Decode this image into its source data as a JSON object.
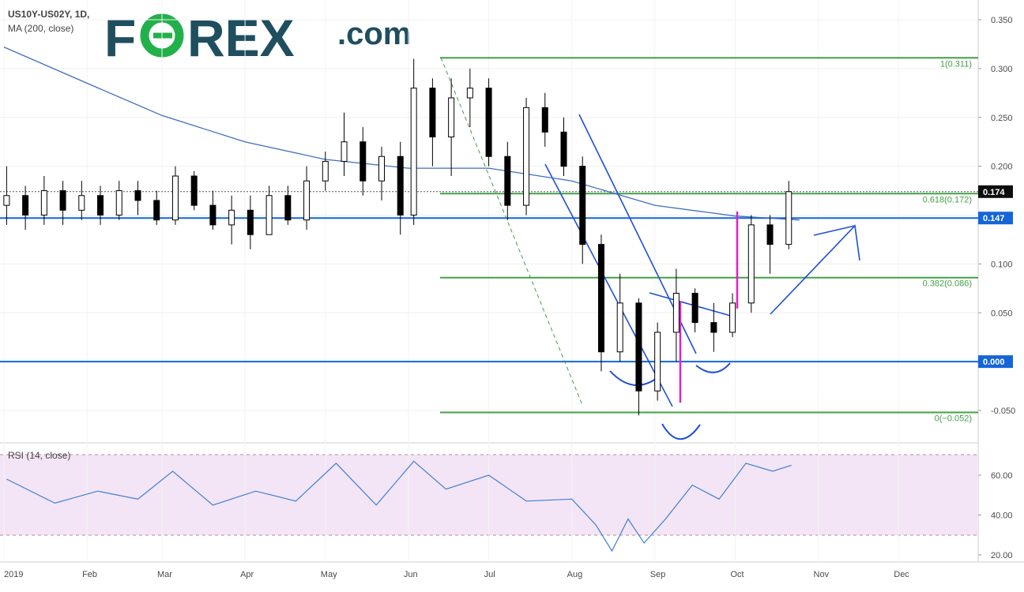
{
  "header": {
    "symbol_line": "US10Y-US02Y, 1D,",
    "ma_line": "MA (200, close)"
  },
  "logo": {
    "brand_left": "F",
    "brand_o": "O",
    "brand_right": "REX",
    "domain": ".com"
  },
  "rsi_panel": {
    "label": "RSI (14, close)"
  },
  "colors": {
    "candle_up_fill": "#ffffff",
    "candle_down_fill": "#000000",
    "ma": "#3f6fbf",
    "horizontal_level": "#1565d8",
    "fib_level": "#43a047",
    "annotation_blue": "#1e4fd8",
    "annotation_magenta": "#e020c8",
    "rsi_line": "#3f7fd6",
    "rsi_band": "#f3e5f5",
    "price_tag_dark": "#0d0d0d",
    "price_tag_blue": "#1565d8",
    "logo_text": "#1f4e5f",
    "logo_accent": "#22b04a"
  },
  "chart_data": [
    {
      "type": "candlestick",
      "title": "US10Y-US02Y, 1D,",
      "indicator": "MA (200, close)",
      "x_tick_labels": [
        "2019",
        "Feb",
        "Mar",
        "Apr",
        "May",
        "Jun",
        "Jul",
        "Aug",
        "Sep",
        "Oct",
        "Nov",
        "Dec"
      ],
      "y_tick_labels": [
        "0.350",
        "0.300",
        "0.250",
        "0.200",
        "0.150",
        "0.100",
        "0.050",
        "0.000",
        "-0.050"
      ],
      "ylim": [
        -0.09,
        0.36
      ],
      "last_price": "0.174",
      "horizontal_levels": [
        {
          "value": 0.147,
          "label": "0.147"
        },
        {
          "value": 0.0,
          "label": "0.000"
        }
      ],
      "fibonacci": [
        {
          "value": 0.311,
          "label": "1(0.311)"
        },
        {
          "value": 0.172,
          "label": "0.618(0.172)"
        },
        {
          "value": 0.086,
          "label": "0.382(0.086)"
        },
        {
          "value": -0.052,
          "label": "0(−0.052)"
        }
      ],
      "candles": [
        {
          "d": "2019-01-02",
          "o": 0.16,
          "h": 0.2,
          "l": 0.14,
          "c": 0.17
        },
        {
          "d": "2019-01-09",
          "o": 0.17,
          "h": 0.18,
          "l": 0.135,
          "c": 0.15
        },
        {
          "d": "2019-01-16",
          "o": 0.15,
          "h": 0.19,
          "l": 0.14,
          "c": 0.175
        },
        {
          "d": "2019-01-23",
          "o": 0.175,
          "h": 0.185,
          "l": 0.14,
          "c": 0.155
        },
        {
          "d": "2019-01-30",
          "o": 0.155,
          "h": 0.185,
          "l": 0.145,
          "c": 0.17
        },
        {
          "d": "2019-02-06",
          "o": 0.17,
          "h": 0.18,
          "l": 0.14,
          "c": 0.15
        },
        {
          "d": "2019-02-13",
          "o": 0.15,
          "h": 0.185,
          "l": 0.145,
          "c": 0.175
        },
        {
          "d": "2019-02-20",
          "o": 0.175,
          "h": 0.185,
          "l": 0.15,
          "c": 0.165
        },
        {
          "d": "2019-02-27",
          "o": 0.165,
          "h": 0.175,
          "l": 0.14,
          "c": 0.145
        },
        {
          "d": "2019-03-06",
          "o": 0.145,
          "h": 0.2,
          "l": 0.14,
          "c": 0.19
        },
        {
          "d": "2019-03-13",
          "o": 0.19,
          "h": 0.195,
          "l": 0.155,
          "c": 0.16
        },
        {
          "d": "2019-03-20",
          "o": 0.16,
          "h": 0.175,
          "l": 0.135,
          "c": 0.14
        },
        {
          "d": "2019-03-27",
          "o": 0.14,
          "h": 0.17,
          "l": 0.12,
          "c": 0.155
        },
        {
          "d": "2019-04-03",
          "o": 0.155,
          "h": 0.17,
          "l": 0.115,
          "c": 0.13
        },
        {
          "d": "2019-04-10",
          "o": 0.13,
          "h": 0.18,
          "l": 0.13,
          "c": 0.17
        },
        {
          "d": "2019-04-17",
          "o": 0.17,
          "h": 0.18,
          "l": 0.14,
          "c": 0.145
        },
        {
          "d": "2019-04-24",
          "o": 0.145,
          "h": 0.2,
          "l": 0.135,
          "c": 0.185
        },
        {
          "d": "2019-05-01",
          "o": 0.185,
          "h": 0.215,
          "l": 0.175,
          "c": 0.205
        },
        {
          "d": "2019-05-08",
          "o": 0.205,
          "h": 0.255,
          "l": 0.19,
          "c": 0.225
        },
        {
          "d": "2019-05-15",
          "o": 0.225,
          "h": 0.24,
          "l": 0.17,
          "c": 0.185
        },
        {
          "d": "2019-05-22",
          "o": 0.185,
          "h": 0.22,
          "l": 0.165,
          "c": 0.21
        },
        {
          "d": "2019-05-29",
          "o": 0.21,
          "h": 0.225,
          "l": 0.13,
          "c": 0.15
        },
        {
          "d": "2019-06-03",
          "o": 0.15,
          "h": 0.31,
          "l": 0.14,
          "c": 0.28
        },
        {
          "d": "2019-06-10",
          "o": 0.28,
          "h": 0.29,
          "l": 0.2,
          "c": 0.23
        },
        {
          "d": "2019-06-17",
          "o": 0.23,
          "h": 0.29,
          "l": 0.19,
          "c": 0.27
        },
        {
          "d": "2019-06-24",
          "o": 0.27,
          "h": 0.3,
          "l": 0.24,
          "c": 0.28
        },
        {
          "d": "2019-07-01",
          "o": 0.28,
          "h": 0.29,
          "l": 0.2,
          "c": 0.21
        },
        {
          "d": "2019-07-08",
          "o": 0.21,
          "h": 0.225,
          "l": 0.145,
          "c": 0.16
        },
        {
          "d": "2019-07-15",
          "o": 0.16,
          "h": 0.27,
          "l": 0.15,
          "c": 0.26
        },
        {
          "d": "2019-07-22",
          "o": 0.26,
          "h": 0.275,
          "l": 0.22,
          "c": 0.235
        },
        {
          "d": "2019-07-29",
          "o": 0.235,
          "h": 0.25,
          "l": 0.19,
          "c": 0.2
        },
        {
          "d": "2019-08-05",
          "o": 0.2,
          "h": 0.21,
          "l": 0.1,
          "c": 0.12
        },
        {
          "d": "2019-08-12",
          "o": 0.12,
          "h": 0.13,
          "l": -0.01,
          "c": 0.01
        },
        {
          "d": "2019-08-19",
          "o": 0.01,
          "h": 0.09,
          "l": 0.0,
          "c": 0.06
        },
        {
          "d": "2019-08-26",
          "o": 0.06,
          "h": 0.065,
          "l": -0.055,
          "c": -0.03
        },
        {
          "d": "2019-09-02",
          "o": -0.03,
          "h": 0.04,
          "l": -0.04,
          "c": 0.03
        },
        {
          "d": "2019-09-09",
          "o": 0.03,
          "h": 0.095,
          "l": 0.0,
          "c": 0.07
        },
        {
          "d": "2019-09-16",
          "o": 0.07,
          "h": 0.075,
          "l": 0.03,
          "c": 0.04
        },
        {
          "d": "2019-09-23",
          "o": 0.04,
          "h": 0.06,
          "l": 0.01,
          "c": 0.03
        },
        {
          "d": "2019-09-30",
          "o": 0.03,
          "h": 0.07,
          "l": 0.025,
          "c": 0.06
        },
        {
          "d": "2019-10-07",
          "o": 0.06,
          "h": 0.15,
          "l": 0.05,
          "c": 0.14
        },
        {
          "d": "2019-10-14",
          "o": 0.14,
          "h": 0.15,
          "l": 0.09,
          "c": 0.12
        },
        {
          "d": "2019-10-21",
          "o": 0.12,
          "h": 0.185,
          "l": 0.115,
          "c": 0.174
        }
      ],
      "ma200": [
        {
          "d": "2019-01-01",
          "v": 0.322
        },
        {
          "d": "2019-02-01",
          "v": 0.285
        },
        {
          "d": "2019-03-01",
          "v": 0.252
        },
        {
          "d": "2019-04-01",
          "v": 0.225
        },
        {
          "d": "2019-05-01",
          "v": 0.207
        },
        {
          "d": "2019-06-01",
          "v": 0.198
        },
        {
          "d": "2019-07-01",
          "v": 0.198
        },
        {
          "d": "2019-08-01",
          "v": 0.185
        },
        {
          "d": "2019-09-01",
          "v": 0.16
        },
        {
          "d": "2019-10-01",
          "v": 0.149
        },
        {
          "d": "2019-10-25",
          "v": 0.145
        }
      ]
    },
    {
      "type": "line",
      "title": "RSI (14, close)",
      "y_tick_labels": [
        "60.00",
        "40.00",
        "20.00"
      ],
      "ylim": [
        15,
        72
      ],
      "band": [
        30,
        70
      ],
      "x": [
        "2019-01-02",
        "2019-01-20",
        "2019-02-05",
        "2019-02-20",
        "2019-03-05",
        "2019-03-20",
        "2019-04-05",
        "2019-04-20",
        "2019-05-05",
        "2019-05-20",
        "2019-06-03",
        "2019-06-15",
        "2019-07-01",
        "2019-07-15",
        "2019-08-01",
        "2019-08-10",
        "2019-08-16",
        "2019-08-22",
        "2019-08-28",
        "2019-09-05",
        "2019-09-15",
        "2019-09-25",
        "2019-10-05",
        "2019-10-15",
        "2019-10-22"
      ],
      "values": [
        58,
        46,
        52,
        48,
        62,
        45,
        52,
        47,
        66,
        45,
        67,
        53,
        60,
        47,
        48,
        35,
        22,
        38,
        26,
        38,
        55,
        48,
        66,
        62,
        65
      ]
    }
  ]
}
